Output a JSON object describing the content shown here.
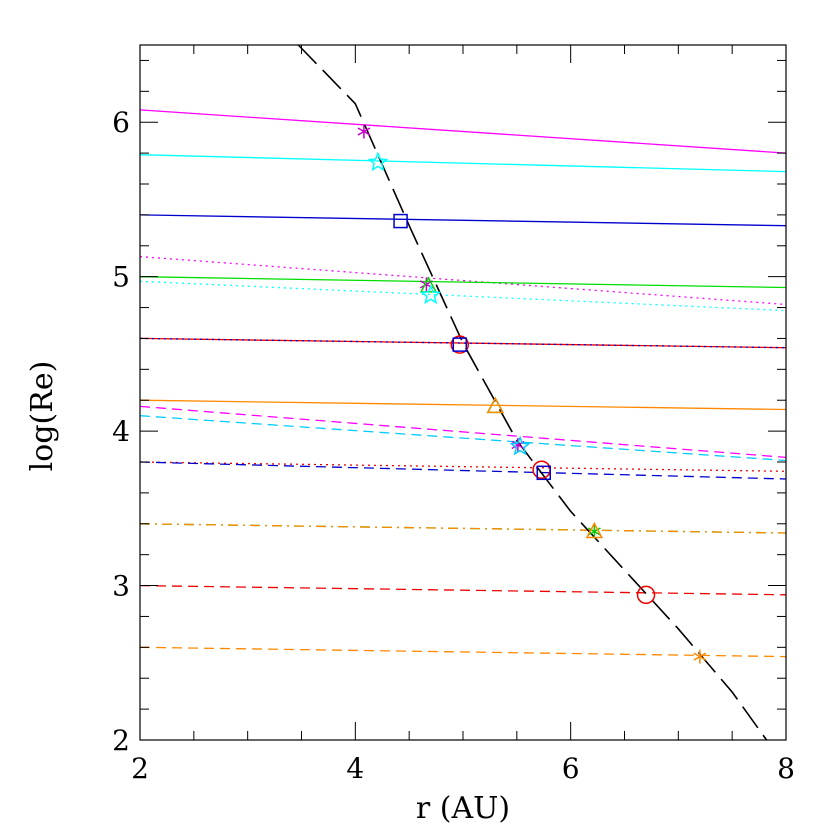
{
  "chart_data": {
    "type": "line",
    "title": "",
    "xlabel": "r (AU)",
    "ylabel": "log(Re)",
    "xlim": [
      2,
      8
    ],
    "ylim": [
      2,
      6.5
    ],
    "xticks": [
      2,
      4,
      6,
      8
    ],
    "yticks": [
      2,
      3,
      4,
      5,
      6
    ],
    "grid": false,
    "legend": "none",
    "series": [
      {
        "color": "#ff00ff",
        "style": "solid",
        "x": [
          2,
          8
        ],
        "y": [
          6.08,
          5.8
        ]
      },
      {
        "color": "#00ffff",
        "style": "solid",
        "x": [
          2,
          8
        ],
        "y": [
          5.79,
          5.68
        ]
      },
      {
        "color": "#0000cc",
        "style": "solid",
        "x": [
          2,
          8
        ],
        "y": [
          5.4,
          5.33
        ]
      },
      {
        "color": "#ff00ff",
        "style": "dotted",
        "x": [
          2,
          8
        ],
        "y": [
          5.13,
          4.82
        ]
      },
      {
        "color": "#00dd00",
        "style": "solid",
        "x": [
          2,
          8
        ],
        "y": [
          5.0,
          4.93
        ]
      },
      {
        "color": "#00ffff",
        "style": "dotted",
        "x": [
          2,
          8
        ],
        "y": [
          4.97,
          4.78
        ]
      },
      {
        "color": "#ee0000",
        "style": "solid",
        "x": [
          2,
          8
        ],
        "y": [
          4.6,
          4.54
        ]
      },
      {
        "color": "#0000cc",
        "style": "dotted",
        "x": [
          2,
          8
        ],
        "y": [
          4.6,
          4.54
        ]
      },
      {
        "color": "#ff8800",
        "style": "solid",
        "x": [
          2,
          8
        ],
        "y": [
          4.2,
          4.14
        ]
      },
      {
        "color": "#ff00ff",
        "style": "dashed",
        "x": [
          2,
          8
        ],
        "y": [
          4.16,
          3.83
        ]
      },
      {
        "color": "#00ccff",
        "style": "dashed",
        "x": [
          2,
          8
        ],
        "y": [
          4.1,
          3.81
        ]
      },
      {
        "color": "#ee0000",
        "style": "dotted",
        "x": [
          2,
          8
        ],
        "y": [
          3.8,
          3.74
        ]
      },
      {
        "color": "#0000cc",
        "style": "dashed",
        "x": [
          2,
          8
        ],
        "y": [
          3.8,
          3.69
        ]
      },
      {
        "color": "#00cc00",
        "style": "dashdot",
        "x": [
          2,
          8
        ],
        "y": [
          3.4,
          3.34
        ]
      },
      {
        "color": "#ff8800",
        "style": "dashdot",
        "x": [
          2,
          8
        ],
        "y": [
          3.4,
          3.34
        ]
      },
      {
        "color": "#ee0000",
        "style": "dashed",
        "x": [
          2,
          8
        ],
        "y": [
          3.0,
          2.94
        ]
      },
      {
        "color": "#ff8800",
        "style": "dashed",
        "x": [
          2,
          8
        ],
        "y": [
          2.6,
          2.54
        ]
      },
      {
        "color": "#000000",
        "style": "longdash",
        "x": [
          3.47,
          4.0,
          4.5,
          5.0,
          5.5,
          6.0,
          6.5,
          7.0,
          7.5,
          7.82
        ],
        "y": [
          6.5,
          6.12,
          5.33,
          4.57,
          3.94,
          3.48,
          3.1,
          2.72,
          2.31,
          2.0
        ]
      }
    ],
    "markers": [
      {
        "x": 4.08,
        "y": 5.94,
        "symbol": "asterisk",
        "color": "#cc00cc"
      },
      {
        "x": 4.21,
        "y": 5.74,
        "symbol": "star",
        "color": "#00ffff"
      },
      {
        "x": 4.42,
        "y": 5.36,
        "symbol": "square",
        "color": "#0000cc"
      },
      {
        "x": 4.66,
        "y": 4.95,
        "symbol": "asterisk",
        "color": "#cc00cc"
      },
      {
        "x": 4.68,
        "y": 4.94,
        "symbol": "triangle",
        "color": "#00dd00"
      },
      {
        "x": 4.7,
        "y": 4.88,
        "symbol": "star",
        "color": "#00ffff"
      },
      {
        "x": 4.97,
        "y": 4.56,
        "symbol": "circle",
        "color": "#ee0000"
      },
      {
        "x": 4.97,
        "y": 4.56,
        "symbol": "square",
        "color": "#0000cc"
      },
      {
        "x": 5.3,
        "y": 4.16,
        "symbol": "triangle",
        "color": "#00dd00"
      },
      {
        "x": 5.3,
        "y": 4.16,
        "symbol": "triangle",
        "color": "#ff8800"
      },
      {
        "x": 5.51,
        "y": 3.91,
        "symbol": "asterisk",
        "color": "#cc00cc"
      },
      {
        "x": 5.53,
        "y": 3.9,
        "symbol": "star",
        "color": "#00ccff"
      },
      {
        "x": 5.73,
        "y": 3.75,
        "symbol": "circle",
        "color": "#ee0000"
      },
      {
        "x": 5.75,
        "y": 3.73,
        "symbol": "square",
        "color": "#0000cc"
      },
      {
        "x": 6.22,
        "y": 3.35,
        "symbol": "asterisk",
        "color": "#00cc00"
      },
      {
        "x": 6.22,
        "y": 3.35,
        "symbol": "triangle",
        "color": "#ff8800"
      },
      {
        "x": 6.7,
        "y": 2.94,
        "symbol": "circle",
        "color": "#ee0000"
      },
      {
        "x": 7.2,
        "y": 2.54,
        "symbol": "asterisk",
        "color": "#ff8800"
      }
    ]
  }
}
